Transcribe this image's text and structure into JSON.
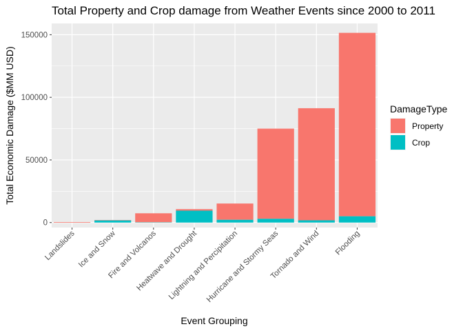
{
  "chart_data": {
    "type": "bar",
    "stacked": true,
    "title": "Total Property and Crop damage from Weather Events since 2000 to 2011",
    "xlabel": "Event Grouping",
    "ylabel": "Total Economic Damage ($MM USD)",
    "categories": [
      "Landslides",
      "Ice and Snow",
      "Fire and Volcanos",
      "Heatwave and Drought",
      "Lightning and Percipitation",
      "Hurricane and Stormy Seas",
      "Tornado and Wind",
      "Flooding"
    ],
    "series": [
      {
        "name": "Property",
        "color": "#F8766D",
        "values": [
          300,
          300,
          7200,
          1200,
          13000,
          72000,
          89500,
          146500
        ]
      },
      {
        "name": "Crop",
        "color": "#00BFC4",
        "values": [
          0,
          1700,
          200,
          9500,
          2200,
          3000,
          1800,
          5000
        ]
      }
    ],
    "ylim": [
      -4000,
      159000
    ],
    "yticks": [
      0,
      50000,
      100000,
      150000
    ],
    "ytick_labels": [
      "0",
      "50000",
      "100000",
      "150000"
    ],
    "grid": true,
    "legend": {
      "title": "DamageType",
      "position": "right",
      "entries": [
        "Property",
        "Crop"
      ]
    },
    "background": "#EBEBEB"
  }
}
